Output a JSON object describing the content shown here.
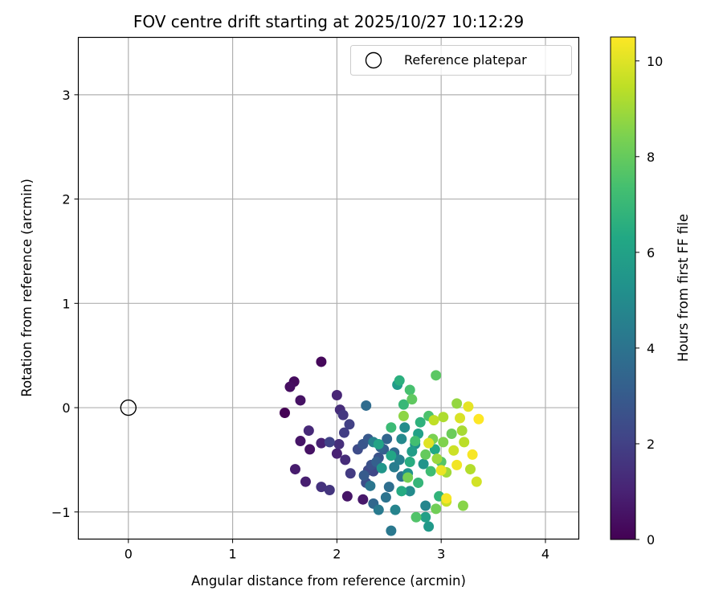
{
  "chart_data": {
    "type": "scatter",
    "title": "FOV centre drift starting at 2025/10/27 10:12:29",
    "xlabel": "Angular distance from reference (arcmin)",
    "ylabel": "Rotation from reference (arcmin)",
    "xlim": [
      -0.48,
      4.32
    ],
    "ylim": [
      -1.26,
      3.55
    ],
    "xticks": [
      0,
      1,
      2,
      3,
      4
    ],
    "yticks": [
      -1,
      0,
      1,
      2,
      3
    ],
    "xtick_labels": [
      "0",
      "1",
      "2",
      "3",
      "4"
    ],
    "ytick_labels": [
      "−1",
      "0",
      "1",
      "2",
      "3"
    ],
    "grid": true,
    "legend": {
      "placement": "top-right",
      "label": "Reference platepar"
    },
    "reference_point": {
      "x": 0,
      "y": 0
    },
    "colorbar": {
      "label": "Hours from first FF file",
      "colormap": "viridis",
      "range": [
        0,
        10.5
      ],
      "ticks": [
        0,
        2,
        4,
        6,
        8,
        10
      ],
      "tick_labels": [
        "0",
        "2",
        "4",
        "6",
        "8",
        "10"
      ]
    },
    "series": [
      {
        "points": [
          {
            "x": 1.5,
            "y": -0.05,
            "c": 0.0
          },
          {
            "x": 1.85,
            "y": 0.44,
            "c": 0.2
          },
          {
            "x": 1.59,
            "y": 0.25,
            "c": 0.3
          },
          {
            "x": 1.55,
            "y": 0.2,
            "c": 0.4
          },
          {
            "x": 1.65,
            "y": 0.07,
            "c": 0.5
          },
          {
            "x": 1.74,
            "y": -0.4,
            "c": 0.5
          },
          {
            "x": 1.65,
            "y": -0.32,
            "c": 0.6
          },
          {
            "x": 2.1,
            "y": -0.85,
            "c": 0.6
          },
          {
            "x": 2.25,
            "y": -0.88,
            "c": 0.7
          },
          {
            "x": 1.6,
            "y": -0.59,
            "c": 0.8
          },
          {
            "x": 1.7,
            "y": -0.71,
            "c": 0.9
          },
          {
            "x": 1.85,
            "y": -0.34,
            "c": 1.0
          },
          {
            "x": 2.0,
            "y": -0.44,
            "c": 1.0
          },
          {
            "x": 2.0,
            "y": 0.12,
            "c": 1.1
          },
          {
            "x": 1.73,
            "y": -0.22,
            "c": 1.2
          },
          {
            "x": 2.03,
            "y": -0.02,
            "c": 1.3
          },
          {
            "x": 2.08,
            "y": -0.5,
            "c": 1.3
          },
          {
            "x": 2.02,
            "y": -0.35,
            "c": 1.4
          },
          {
            "x": 1.85,
            "y": -0.76,
            "c": 1.5
          },
          {
            "x": 1.93,
            "y": -0.79,
            "c": 1.6
          },
          {
            "x": 2.06,
            "y": -0.07,
            "c": 1.7
          },
          {
            "x": 2.13,
            "y": -0.63,
            "c": 1.8
          },
          {
            "x": 2.07,
            "y": -0.24,
            "c": 1.9
          },
          {
            "x": 2.12,
            "y": -0.16,
            "c": 2.0
          },
          {
            "x": 1.93,
            "y": -0.33,
            "c": 2.1
          },
          {
            "x": 2.35,
            "y": -0.61,
            "c": 2.2
          },
          {
            "x": 2.3,
            "y": -0.6,
            "c": 2.3
          },
          {
            "x": 2.2,
            "y": -0.4,
            "c": 2.4
          },
          {
            "x": 2.28,
            "y": -0.72,
            "c": 2.5
          },
          {
            "x": 2.33,
            "y": -0.55,
            "c": 2.6
          },
          {
            "x": 2.4,
            "y": -0.48,
            "c": 2.7
          },
          {
            "x": 2.25,
            "y": -0.35,
            "c": 2.8
          },
          {
            "x": 2.3,
            "y": -0.3,
            "c": 2.9
          },
          {
            "x": 2.26,
            "y": -0.65,
            "c": 3.0
          },
          {
            "x": 2.45,
            "y": -0.4,
            "c": 3.1
          },
          {
            "x": 2.38,
            "y": -0.52,
            "c": 3.2
          },
          {
            "x": 2.42,
            "y": -0.38,
            "c": 3.3
          },
          {
            "x": 2.48,
            "y": -0.3,
            "c": 3.4
          },
          {
            "x": 2.35,
            "y": -0.92,
            "c": 3.5
          },
          {
            "x": 2.55,
            "y": -0.43,
            "c": 3.6
          },
          {
            "x": 2.28,
            "y": 0.02,
            "c": 3.7
          },
          {
            "x": 2.5,
            "y": -0.76,
            "c": 3.8
          },
          {
            "x": 2.62,
            "y": -0.66,
            "c": 3.9
          },
          {
            "x": 2.47,
            "y": -0.86,
            "c": 4.0
          },
          {
            "x": 2.32,
            "y": -0.75,
            "c": 4.1
          },
          {
            "x": 2.52,
            "y": -1.18,
            "c": 4.2
          },
          {
            "x": 2.4,
            "y": -0.98,
            "c": 4.3
          },
          {
            "x": 2.55,
            "y": -0.57,
            "c": 4.4
          },
          {
            "x": 2.6,
            "y": -0.5,
            "c": 4.5
          },
          {
            "x": 2.35,
            "y": -0.33,
            "c": 4.6
          },
          {
            "x": 2.56,
            "y": -0.98,
            "c": 4.7
          },
          {
            "x": 2.85,
            "y": -0.94,
            "c": 4.8
          },
          {
            "x": 2.62,
            "y": -0.3,
            "c": 4.9
          },
          {
            "x": 2.7,
            "y": -0.8,
            "c": 5.0
          },
          {
            "x": 2.65,
            "y": -0.19,
            "c": 5.1
          },
          {
            "x": 2.75,
            "y": -0.35,
            "c": 5.2
          },
          {
            "x": 2.68,
            "y": -0.63,
            "c": 5.3
          },
          {
            "x": 2.83,
            "y": -0.54,
            "c": 5.4
          },
          {
            "x": 2.43,
            "y": -0.58,
            "c": 5.5
          },
          {
            "x": 2.88,
            "y": -1.14,
            "c": 5.6
          },
          {
            "x": 2.58,
            "y": 0.22,
            "c": 5.7
          },
          {
            "x": 2.72,
            "y": -0.42,
            "c": 5.8
          },
          {
            "x": 2.85,
            "y": -1.05,
            "c": 5.9
          },
          {
            "x": 2.78,
            "y": -0.25,
            "c": 6.0
          },
          {
            "x": 2.4,
            "y": -0.35,
            "c": 6.1
          },
          {
            "x": 2.52,
            "y": -0.46,
            "c": 6.2
          },
          {
            "x": 2.94,
            "y": -0.4,
            "c": 6.3
          },
          {
            "x": 2.62,
            "y": -0.8,
            "c": 6.4
          },
          {
            "x": 2.7,
            "y": -0.52,
            "c": 6.5
          },
          {
            "x": 2.6,
            "y": 0.26,
            "c": 6.6
          },
          {
            "x": 2.8,
            "y": -0.14,
            "c": 6.7
          },
          {
            "x": 2.98,
            "y": -0.85,
            "c": 6.8
          },
          {
            "x": 2.78,
            "y": -0.72,
            "c": 6.9
          },
          {
            "x": 2.64,
            "y": 0.03,
            "c": 7.0
          },
          {
            "x": 2.52,
            "y": -0.19,
            "c": 7.1
          },
          {
            "x": 2.9,
            "y": -0.61,
            "c": 7.2
          },
          {
            "x": 2.75,
            "y": -0.32,
            "c": 7.3
          },
          {
            "x": 2.7,
            "y": 0.17,
            "c": 7.4
          },
          {
            "x": 2.88,
            "y": -0.08,
            "c": 7.5
          },
          {
            "x": 2.76,
            "y": -1.05,
            "c": 7.6
          },
          {
            "x": 3.0,
            "y": -0.52,
            "c": 7.7
          },
          {
            "x": 2.95,
            "y": 0.31,
            "c": 7.8
          },
          {
            "x": 2.72,
            "y": 0.08,
            "c": 7.9
          },
          {
            "x": 2.85,
            "y": -0.45,
            "c": 8.0
          },
          {
            "x": 3.1,
            "y": -0.25,
            "c": 8.1
          },
          {
            "x": 2.95,
            "y": -0.97,
            "c": 8.2
          },
          {
            "x": 2.68,
            "y": -0.67,
            "c": 8.3
          },
          {
            "x": 2.92,
            "y": -0.3,
            "c": 8.4
          },
          {
            "x": 3.02,
            "y": -0.33,
            "c": 8.5
          },
          {
            "x": 3.21,
            "y": -0.94,
            "c": 8.6
          },
          {
            "x": 2.64,
            "y": -0.08,
            "c": 8.7
          },
          {
            "x": 3.15,
            "y": 0.04,
            "c": 8.8
          },
          {
            "x": 2.96,
            "y": -0.49,
            "c": 8.9
          },
          {
            "x": 3.05,
            "y": -0.62,
            "c": 9.0
          },
          {
            "x": 3.2,
            "y": -0.22,
            "c": 9.1
          },
          {
            "x": 3.02,
            "y": -0.09,
            "c": 9.2
          },
          {
            "x": 3.28,
            "y": -0.59,
            "c": 9.3
          },
          {
            "x": 3.22,
            "y": -0.33,
            "c": 9.4
          },
          {
            "x": 2.93,
            "y": -0.12,
            "c": 9.5
          },
          {
            "x": 3.05,
            "y": -0.9,
            "c": 9.6
          },
          {
            "x": 3.12,
            "y": -0.41,
            "c": 9.7
          },
          {
            "x": 3.34,
            "y": -0.71,
            "c": 9.8
          },
          {
            "x": 3.18,
            "y": -0.1,
            "c": 9.9
          },
          {
            "x": 2.88,
            "y": -0.34,
            "c": 10.0
          },
          {
            "x": 3.26,
            "y": 0.01,
            "c": 10.1
          },
          {
            "x": 3.0,
            "y": -0.6,
            "c": 10.2
          },
          {
            "x": 3.15,
            "y": -0.55,
            "c": 10.3
          },
          {
            "x": 3.3,
            "y": -0.45,
            "c": 10.4
          },
          {
            "x": 3.05,
            "y": -0.87,
            "c": 10.4
          },
          {
            "x": 3.36,
            "y": -0.11,
            "c": 10.5
          }
        ]
      }
    ]
  }
}
